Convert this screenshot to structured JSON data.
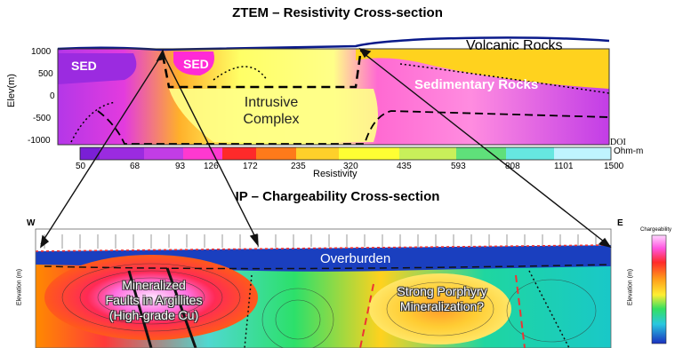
{
  "top": {
    "title": "ZTEM – Resistivity Cross-section",
    "ylabel": "Elev(m)",
    "yticks": [
      "1000",
      "500",
      "0",
      "-500",
      "-1000"
    ],
    "units": [
      "SED",
      "SED",
      "Volcanic Rocks",
      "Sedimentary Rocks",
      "Intrusive Complex",
      "DOI"
    ],
    "colorbar": {
      "values": [
        "50",
        "68",
        "93",
        "126",
        "172",
        "235",
        "320",
        "435",
        "593",
        "808",
        "1101",
        "1500"
      ],
      "unit": "Ohm-m",
      "label": "Resistivity",
      "colors": [
        "#7a1fd6",
        "#9b2be0",
        "#c23de6",
        "#ff39d0",
        "#ff2a2a",
        "#ff7a1a",
        "#ffd02a",
        "#ffff33",
        "#c8f05a",
        "#5fe07a",
        "#66e7e0",
        "#bff4ff"
      ]
    }
  },
  "bottom": {
    "title": "IP – Chargeability Cross-section",
    "west": "W",
    "east": "E",
    "ylabel_left": "Elevation (m)",
    "ylabel_right": "Elevation (m)",
    "legend_title": "Chargeability",
    "labels": {
      "overburden": "Overburden",
      "faults_line1": "Mineralized",
      "faults_line2": "Faults in Argillites",
      "faults_line3": "(High-grade Cu)",
      "porphyry_line1": "Strong Porphyry",
      "porphyry_line2": "Mineralization?"
    }
  },
  "colors": {
    "intrusive": "#ffff66",
    "sed_magenta": "#ff44e0",
    "volcanic_yellow": "#ffd21e",
    "overburden_blue": "#1a3fbf",
    "chargeable_red": "#e8262a"
  }
}
